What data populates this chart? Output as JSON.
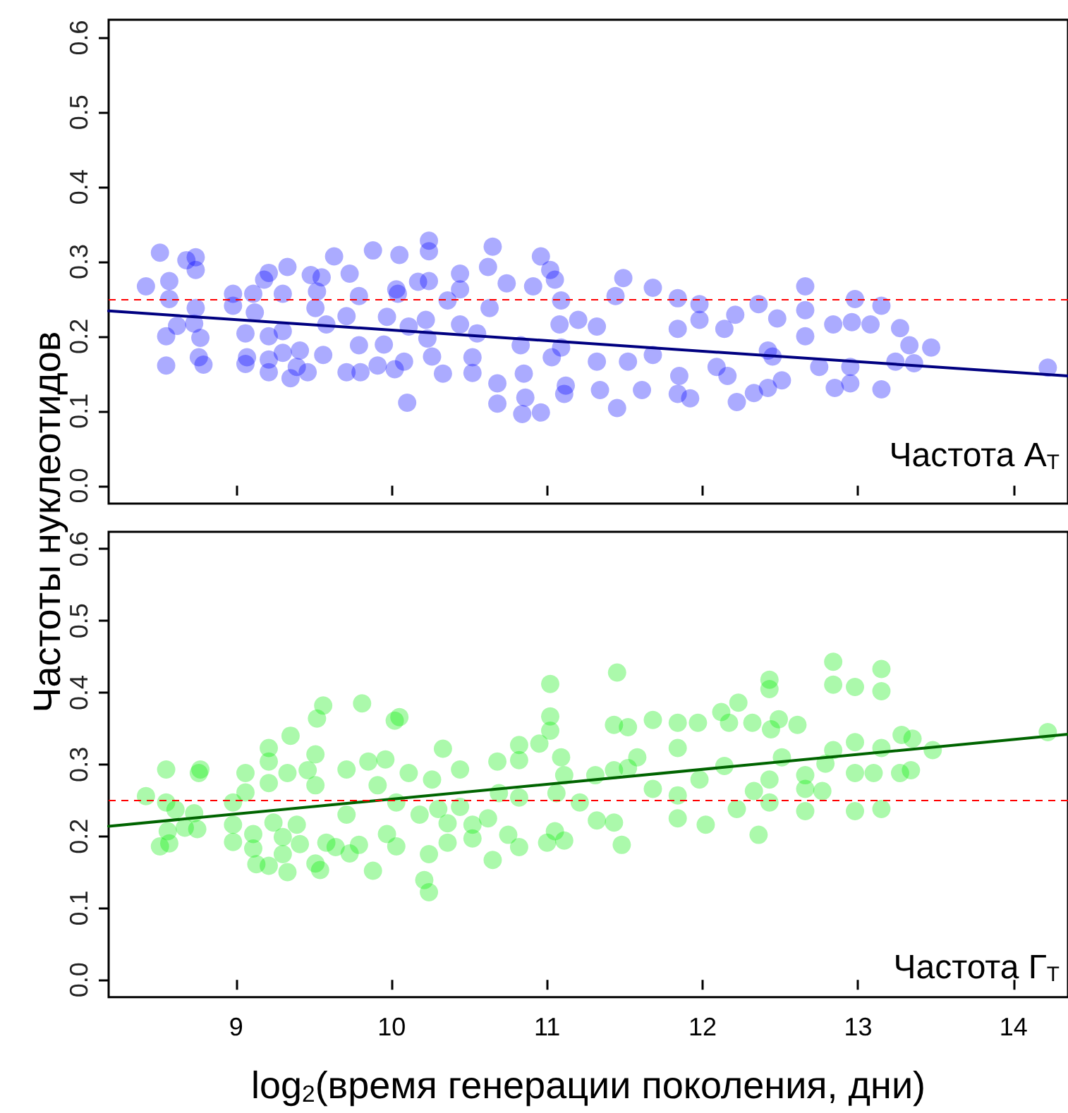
{
  "chart_data": [
    {
      "type": "scatter",
      "ylabel": "Частоты нуклеотидов",
      "annotations": [
        "Частота А$_{Т}$"
      ],
      "tick_labels": "y",
      "xlim": [
        8.18,
        14.35
      ],
      "xticks": [
        9,
        10,
        11,
        12,
        13,
        14
      ],
      "ylim": [
        -0.024,
        0.624
      ],
      "yticks": [
        {
          "value": 0,
          "label": "0.0"
        },
        0.1,
        0.2,
        0.3,
        0.4,
        0.5,
        0.6
      ],
      "ref_lines": [
        {
          "axis": "y",
          "value": 0.25,
          "color": "#ff0000",
          "line_style": "dashed"
        }
      ],
      "series": [
        {
          "marker": "circle",
          "color": "#0000ff",
          "x": [
            8.51,
            8.42,
            8.68,
            8.74,
            8.74,
            8.57,
            8.57,
            8.55,
            8.55,
            8.62,
            8.73,
            8.74,
            8.77,
            8.76,
            8.79,
            8.98,
            8.98,
            9.06,
            9.07,
            9.06,
            9.11,
            9.12,
            9.21,
            9.18,
            9.21,
            9.21,
            9.21,
            9.3,
            9.33,
            9.3,
            9.3,
            9.35,
            9.41,
            9.39,
            9.46,
            9.48,
            9.51,
            9.55,
            9.58,
            9.56,
            9.63,
            9.52,
            9.73,
            9.71,
            9.71,
            9.79,
            9.79,
            9.8,
            9.88,
            9.91,
            9.95,
            9.97,
            10.05,
            10.03,
            10.04,
            10.02,
            10.08,
            10.1,
            10.11,
            10.17,
            10.24,
            10.24,
            10.24,
            10.22,
            10.23,
            10.26,
            10.33,
            10.36,
            10.44,
            10.44,
            10.44,
            10.52,
            10.52,
            10.55,
            10.62,
            10.65,
            10.63,
            10.68,
            10.68,
            10.74,
            10.83,
            10.85,
            10.84,
            10.96,
            10.96,
            10.91,
            10.86,
            11.02,
            11.05,
            11.03,
            11.08,
            11.09,
            11.11,
            11.09,
            11.49,
            11.68,
            11.44,
            11.84,
            11.98,
            11.98,
            11.84,
            11.85,
            11.84,
            11.92,
            11.45,
            11.61,
            11.34,
            11.12,
            11.32,
            11.32,
            11.52,
            11.68,
            12.14,
            12.21,
            12.36,
            12.48,
            12.42,
            12.42,
            12.22,
            12.33,
            12.16,
            12.51,
            12.66,
            12.66,
            12.66,
            12.75,
            12.84,
            12.85,
            12.98,
            12.96,
            12.95,
            12.95,
            13.08,
            13.15,
            13.15,
            13.27,
            13.33,
            13.36,
            13.47,
            14.22,
            13.24,
            12.45,
            12.09,
            11.2
          ],
          "values": [
            0.312,
            0.267,
            0.302,
            0.306,
            0.289,
            0.274,
            0.25,
            0.2,
            0.161,
            0.214,
            0.217,
            0.238,
            0.198,
            0.172,
            0.162,
            0.257,
            0.241,
            0.204,
            0.172,
            0.163,
            0.257,
            0.232,
            0.285,
            0.276,
            0.2,
            0.169,
            0.152,
            0.207,
            0.293,
            0.257,
            0.178,
            0.144,
            0.181,
            0.159,
            0.152,
            0.282,
            0.238,
            0.279,
            0.216,
            0.175,
            0.307,
            0.26,
            0.284,
            0.227,
            0.152,
            0.254,
            0.188,
            0.152,
            0.315,
            0.161,
            0.189,
            0.226,
            0.309,
            0.263,
            0.257,
            0.156,
            0.166,
            0.111,
            0.213,
            0.273,
            0.328,
            0.314,
            0.274,
            0.222,
            0.197,
            0.173,
            0.15,
            0.248,
            0.284,
            0.263,
            0.216,
            0.172,
            0.151,
            0.204,
            0.293,
            0.32,
            0.238,
            0.137,
            0.11,
            0.271,
            0.188,
            0.15,
            0.096,
            0.307,
            0.098,
            0.267,
            0.118,
            0.289,
            0.276,
            0.172,
            0.216,
            0.185,
            0.123,
            0.248,
            0.278,
            0.265,
            0.254,
            0.251,
            0.243,
            0.222,
            0.21,
            0.147,
            0.123,
            0.117,
            0.104,
            0.128,
            0.128,
            0.134,
            0.213,
            0.166,
            0.166,
            0.175,
            0.21,
            0.229,
            0.243,
            0.224,
            0.181,
            0.131,
            0.112,
            0.124,
            0.147,
            0.141,
            0.267,
            0.235,
            0.2,
            0.159,
            0.216,
            0.131,
            0.25,
            0.219,
            0.159,
            0.137,
            0.216,
            0.241,
            0.129,
            0.211,
            0.188,
            0.164,
            0.185,
            0.158,
            0.166,
            0.173,
            0.159,
            0.222
          ]
        },
        {
          "type": "line",
          "marker": "none",
          "color": "#000080",
          "x": [
            8.18,
            14.35
          ],
          "values": [
            0.234,
            0.147
          ]
        }
      ]
    },
    {
      "type": "scatter",
      "xlabel": "log$_{2}$(время генерации поколения, дни)",
      "annotations": [
        "Частота Г$_{Т}$"
      ],
      "xlim": [
        8.18,
        14.35
      ],
      "xticks": [
        9,
        10,
        11,
        12,
        13,
        14
      ],
      "ylim": [
        -0.024,
        0.624
      ],
      "yticks": [
        {
          "value": 0,
          "label": "0.0"
        },
        0.1,
        0.2,
        0.3,
        0.4,
        0.5,
        0.6
      ],
      "ref_lines": [
        {
          "axis": "y",
          "value": 0.25,
          "color": "#ff0000",
          "line_style": "dashed"
        }
      ],
      "series": [
        {
          "marker": "circle",
          "color": "#00ee00",
          "x": [
            8.42,
            8.55,
            8.51,
            8.57,
            8.55,
            8.61,
            8.56,
            8.67,
            8.77,
            8.76,
            8.73,
            8.75,
            8.98,
            8.98,
            8.98,
            9.06,
            9.06,
            9.11,
            9.11,
            9.13,
            9.21,
            9.21,
            9.21,
            9.21,
            9.24,
            9.3,
            9.3,
            9.35,
            9.33,
            9.33,
            9.39,
            9.41,
            9.46,
            9.51,
            9.52,
            9.56,
            9.51,
            9.54,
            9.51,
            9.58,
            9.64,
            9.71,
            9.71,
            9.73,
            9.81,
            9.79,
            9.88,
            9.85,
            9.96,
            9.91,
            10.02,
            10.05,
            9.97,
            10.03,
            10.03,
            10.11,
            10.18,
            10.21,
            10.24,
            10.24,
            10.26,
            10.33,
            10.3,
            10.36,
            10.36,
            10.44,
            10.44,
            10.52,
            10.52,
            10.65,
            10.68,
            10.62,
            10.69,
            10.75,
            10.82,
            10.82,
            10.82,
            10.82,
            10.95,
            11.02,
            11.02,
            11.02,
            11.0,
            11.09,
            11.11,
            11.06,
            11.11,
            11.05,
            11.45,
            11.43,
            11.52,
            11.68,
            11.84,
            11.97,
            11.43,
            11.52,
            11.31,
            11.21,
            11.32,
            11.43,
            11.48,
            11.68,
            11.84,
            11.84,
            11.84,
            12.02,
            11.98,
            12.12,
            12.23,
            12.17,
            12.32,
            12.44,
            12.49,
            12.61,
            12.43,
            12.43,
            12.36,
            12.22,
            12.33,
            12.43,
            12.43,
            12.51,
            12.66,
            12.66,
            12.66,
            12.77,
            12.84,
            12.84,
            12.84,
            12.98,
            12.98,
            12.98,
            12.98,
            13.1,
            13.15,
            13.15,
            13.15,
            13.15,
            13.28,
            13.35,
            13.27,
            13.34,
            13.48,
            14.22,
            12.14,
            11.58,
            12.79
          ],
          "values": [
            0.256,
            0.293,
            0.186,
            0.19,
            0.247,
            0.237,
            0.207,
            0.212,
            0.293,
            0.288,
            0.232,
            0.21,
            0.247,
            0.216,
            0.192,
            0.288,
            0.261,
            0.203,
            0.183,
            0.161,
            0.323,
            0.304,
            0.274,
            0.159,
            0.219,
            0.199,
            0.175,
            0.34,
            0.288,
            0.15,
            0.216,
            0.189,
            0.292,
            0.314,
            0.364,
            0.382,
            0.271,
            0.153,
            0.162,
            0.191,
            0.185,
            0.293,
            0.23,
            0.176,
            0.385,
            0.188,
            0.152,
            0.304,
            0.307,
            0.271,
            0.361,
            0.366,
            0.203,
            0.186,
            0.247,
            0.288,
            0.23,
            0.139,
            0.122,
            0.175,
            0.279,
            0.322,
            0.238,
            0.218,
            0.191,
            0.293,
            0.241,
            0.197,
            0.216,
            0.167,
            0.304,
            0.225,
            0.26,
            0.202,
            0.327,
            0.306,
            0.254,
            0.185,
            0.329,
            0.412,
            0.367,
            0.347,
            0.191,
            0.31,
            0.285,
            0.26,
            0.194,
            0.207,
            0.428,
            0.355,
            0.352,
            0.362,
            0.358,
            0.358,
            0.292,
            0.295,
            0.285,
            0.247,
            0.222,
            0.219,
            0.188,
            0.266,
            0.323,
            0.257,
            0.225,
            0.216,
            0.279,
            0.373,
            0.386,
            0.358,
            0.358,
            0.349,
            0.363,
            0.355,
            0.405,
            0.418,
            0.202,
            0.238,
            0.263,
            0.279,
            0.247,
            0.31,
            0.285,
            0.266,
            0.235,
            0.263,
            0.443,
            0.411,
            0.32,
            0.408,
            0.331,
            0.288,
            0.235,
            0.288,
            0.433,
            0.402,
            0.323,
            0.238,
            0.341,
            0.336,
            0.288,
            0.292,
            0.32,
            0.345,
            0.298,
            0.31,
            0.301
          ]
        },
        {
          "type": "line",
          "marker": "none",
          "color": "#006400",
          "x": [
            8.18,
            14.35
          ],
          "values": [
            0.214,
            0.342
          ]
        }
      ]
    }
  ]
}
